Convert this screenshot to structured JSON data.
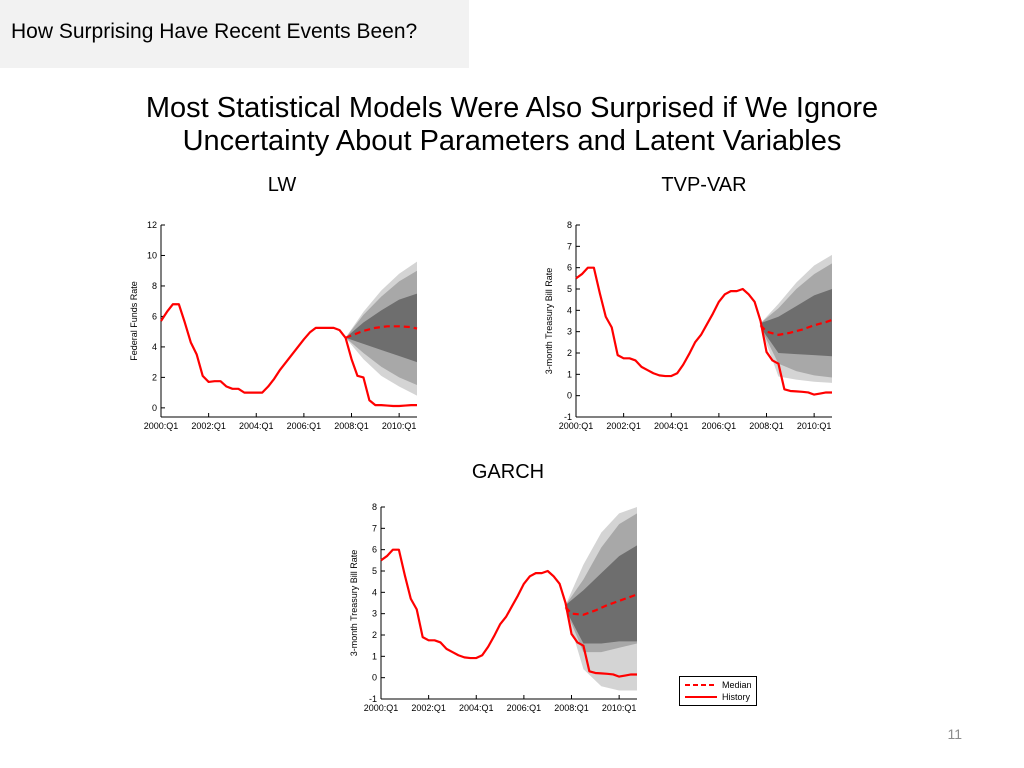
{
  "header": {
    "section_label": "How Surprising Have Recent Events Been?"
  },
  "slide": {
    "title_line1": "Most Statistical Models Were Also Surprised if We Ignore",
    "title_line2": "Uncertainty About Parameters and Latent Variables",
    "page_number": "11"
  },
  "colors": {
    "history": "#ff0000",
    "median": "#ff0000",
    "band_outer": "#d4d4d4",
    "band_middle": "#a8a8a8",
    "band_inner": "#6e6e6e"
  },
  "legend": {
    "median_label": "Median",
    "history_label": "History"
  },
  "chart_data": [
    {
      "type": "line",
      "heading": "LW",
      "ylabel": "Federal Funds Rate",
      "xlabel": "",
      "ylim": [
        -0.6,
        12
      ],
      "yticks": [
        0,
        2,
        4,
        6,
        8,
        10,
        12
      ],
      "xlim": [
        2000.0,
        2010.75
      ],
      "xticks": [
        {
          "t": 2000.0,
          "label": "2000:Q1"
        },
        {
          "t": 2002.0,
          "label": "2002:Q1"
        },
        {
          "t": 2004.0,
          "label": "2004:Q1"
        },
        {
          "t": 2006.0,
          "label": "2006:Q1"
        },
        {
          "t": 2008.0,
          "label": "2008:Q1"
        },
        {
          "t": 2010.0,
          "label": "2010:Q1"
        }
      ],
      "series": [
        {
          "name": "History",
          "style": "solid",
          "x": [
            2000.0,
            2000.25,
            2000.5,
            2000.75,
            2001.0,
            2001.25,
            2001.5,
            2001.75,
            2002.0,
            2002.25,
            2002.5,
            2002.75,
            2003.0,
            2003.25,
            2003.5,
            2003.75,
            2004.0,
            2004.25,
            2004.5,
            2004.75,
            2005.0,
            2005.25,
            2005.5,
            2005.75,
            2006.0,
            2006.25,
            2006.5,
            2006.75,
            2007.0,
            2007.25,
            2007.5,
            2007.75,
            2008.0,
            2008.25,
            2008.5,
            2008.75,
            2009.0,
            2009.25,
            2009.5,
            2009.75,
            2010.0,
            2010.25,
            2010.5,
            2010.75
          ],
          "y": [
            5.7,
            6.3,
            6.8,
            6.8,
            5.6,
            4.3,
            3.5,
            2.1,
            1.7,
            1.75,
            1.75,
            1.4,
            1.25,
            1.25,
            1.0,
            1.0,
            1.0,
            1.0,
            1.4,
            1.9,
            2.5,
            3.0,
            3.5,
            4.0,
            4.5,
            4.95,
            5.25,
            5.25,
            5.25,
            5.25,
            5.1,
            4.6,
            3.2,
            2.1,
            2.0,
            0.5,
            0.18,
            0.18,
            0.15,
            0.12,
            0.12,
            0.15,
            0.18,
            0.18
          ]
        },
        {
          "name": "Median",
          "style": "dashed",
          "x": [
            2007.75,
            2008.0,
            2008.5,
            2009.0,
            2009.5,
            2010.0,
            2010.5,
            2010.75
          ],
          "y": [
            4.6,
            4.75,
            5.05,
            5.25,
            5.35,
            5.35,
            5.3,
            5.2
          ]
        }
      ],
      "bands": {
        "x": [
          2007.75,
          2008.5,
          2009.25,
          2010.0,
          2010.75
        ],
        "outer_lower": [
          4.6,
          3.2,
          2.1,
          1.4,
          0.8
        ],
        "outer_upper": [
          4.6,
          6.3,
          7.7,
          8.8,
          9.6
        ],
        "middle_lower": [
          4.6,
          3.6,
          2.7,
          2.0,
          1.5
        ],
        "middle_upper": [
          4.6,
          6.1,
          7.3,
          8.3,
          9.0
        ],
        "inner_lower": [
          4.6,
          4.2,
          3.8,
          3.4,
          3.0
        ],
        "inner_upper": [
          4.6,
          5.6,
          6.4,
          7.1,
          7.5
        ]
      }
    },
    {
      "type": "line",
      "heading": "TVP-VAR",
      "ylabel": "3-month Treasury Bill Rate",
      "xlabel": "",
      "ylim": [
        -1,
        8
      ],
      "yticks": [
        -1,
        0,
        1,
        2,
        3,
        4,
        5,
        6,
        7,
        8
      ],
      "xlim": [
        2000.0,
        2010.75
      ],
      "xticks": [
        {
          "t": 2000.0,
          "label": "2000:Q1"
        },
        {
          "t": 2002.0,
          "label": "2002:Q1"
        },
        {
          "t": 2004.0,
          "label": "2004:Q1"
        },
        {
          "t": 2006.0,
          "label": "2006:Q1"
        },
        {
          "t": 2008.0,
          "label": "2008:Q1"
        },
        {
          "t": 2010.0,
          "label": "2010:Q1"
        }
      ],
      "series": [
        {
          "name": "History",
          "style": "solid",
          "x": [
            2000.0,
            2000.25,
            2000.5,
            2000.75,
            2001.0,
            2001.25,
            2001.5,
            2001.75,
            2002.0,
            2002.25,
            2002.5,
            2002.75,
            2003.0,
            2003.25,
            2003.5,
            2003.75,
            2004.0,
            2004.25,
            2004.5,
            2004.75,
            2005.0,
            2005.25,
            2005.5,
            2005.75,
            2006.0,
            2006.25,
            2006.5,
            2006.75,
            2007.0,
            2007.25,
            2007.5,
            2007.75,
            2008.0,
            2008.25,
            2008.5,
            2008.75,
            2009.0,
            2009.25,
            2009.5,
            2009.75,
            2010.0,
            2010.25,
            2010.5,
            2010.75
          ],
          "y": [
            5.5,
            5.7,
            6.0,
            6.0,
            4.8,
            3.7,
            3.2,
            1.9,
            1.75,
            1.75,
            1.65,
            1.35,
            1.2,
            1.05,
            0.95,
            0.92,
            0.92,
            1.05,
            1.45,
            1.95,
            2.5,
            2.85,
            3.35,
            3.85,
            4.4,
            4.75,
            4.9,
            4.9,
            5.0,
            4.75,
            4.4,
            3.5,
            2.05,
            1.65,
            1.5,
            0.3,
            0.22,
            0.2,
            0.18,
            0.15,
            0.05,
            0.1,
            0.15,
            0.15
          ]
        },
        {
          "name": "Median",
          "style": "dashed",
          "x": [
            2007.75,
            2008.0,
            2008.5,
            2009.0,
            2009.5,
            2010.0,
            2010.5,
            2010.75
          ],
          "y": [
            3.3,
            3.0,
            2.85,
            2.95,
            3.1,
            3.3,
            3.45,
            3.55
          ]
        }
      ],
      "bands": {
        "x": [
          2007.75,
          2008.5,
          2009.25,
          2010.0,
          2010.75
        ],
        "outer_lower": [
          3.2,
          0.9,
          0.75,
          0.65,
          0.6
        ],
        "outer_upper": [
          3.4,
          4.3,
          5.3,
          6.1,
          6.6
        ],
        "middle_lower": [
          3.2,
          1.5,
          1.15,
          0.95,
          0.85
        ],
        "middle_upper": [
          3.4,
          4.1,
          5.0,
          5.7,
          6.2
        ],
        "inner_lower": [
          3.2,
          2.0,
          1.95,
          1.9,
          1.85
        ],
        "inner_upper": [
          3.4,
          3.7,
          4.2,
          4.7,
          5.0
        ]
      }
    },
    {
      "type": "line",
      "heading": "GARCH",
      "ylabel": "3-month Treasury Bill Rate",
      "xlabel": "",
      "ylim": [
        -1,
        8
      ],
      "yticks": [
        -1,
        0,
        1,
        2,
        3,
        4,
        5,
        6,
        7,
        8
      ],
      "xlim": [
        2000.0,
        2010.75
      ],
      "xticks": [
        {
          "t": 2000.0,
          "label": "2000:Q1"
        },
        {
          "t": 2002.0,
          "label": "2002:Q1"
        },
        {
          "t": 2004.0,
          "label": "2004:Q1"
        },
        {
          "t": 2006.0,
          "label": "2006:Q1"
        },
        {
          "t": 2008.0,
          "label": "2008:Q1"
        },
        {
          "t": 2010.0,
          "label": "2010:Q1"
        }
      ],
      "legend": [
        "Median",
        "History"
      ],
      "series": [
        {
          "name": "History",
          "style": "solid",
          "x": [
            2000.0,
            2000.25,
            2000.5,
            2000.75,
            2001.0,
            2001.25,
            2001.5,
            2001.75,
            2002.0,
            2002.25,
            2002.5,
            2002.75,
            2003.0,
            2003.25,
            2003.5,
            2003.75,
            2004.0,
            2004.25,
            2004.5,
            2004.75,
            2005.0,
            2005.25,
            2005.5,
            2005.75,
            2006.0,
            2006.25,
            2006.5,
            2006.75,
            2007.0,
            2007.25,
            2007.5,
            2007.75,
            2008.0,
            2008.25,
            2008.5,
            2008.75,
            2009.0,
            2009.25,
            2009.5,
            2009.75,
            2010.0,
            2010.25,
            2010.5,
            2010.75
          ],
          "y": [
            5.5,
            5.7,
            6.0,
            6.0,
            4.8,
            3.7,
            3.2,
            1.9,
            1.75,
            1.75,
            1.65,
            1.35,
            1.2,
            1.05,
            0.95,
            0.92,
            0.92,
            1.05,
            1.45,
            1.95,
            2.5,
            2.85,
            3.35,
            3.85,
            4.4,
            4.75,
            4.9,
            4.9,
            5.0,
            4.75,
            4.4,
            3.5,
            2.05,
            1.65,
            1.5,
            0.3,
            0.22,
            0.2,
            0.18,
            0.15,
            0.05,
            0.1,
            0.15,
            0.15
          ]
        },
        {
          "name": "Median",
          "style": "dashed",
          "x": [
            2007.75,
            2008.0,
            2008.5,
            2009.0,
            2009.5,
            2010.0,
            2010.5,
            2010.75
          ],
          "y": [
            3.3,
            3.0,
            2.95,
            3.15,
            3.4,
            3.6,
            3.8,
            3.9
          ]
        }
      ],
      "bands": {
        "x": [
          2007.75,
          2008.5,
          2009.25,
          2010.0,
          2010.75
        ],
        "outer_lower": [
          3.2,
          0.4,
          -0.4,
          -0.6,
          -0.6
        ],
        "outer_upper": [
          3.4,
          5.3,
          6.8,
          7.7,
          8.0
        ],
        "middle_lower": [
          3.2,
          1.2,
          1.2,
          1.4,
          1.6
        ],
        "middle_upper": [
          3.4,
          4.6,
          6.1,
          7.2,
          7.7
        ],
        "inner_lower": [
          3.2,
          1.6,
          1.6,
          1.7,
          1.7
        ],
        "inner_upper": [
          3.4,
          4.1,
          4.9,
          5.7,
          6.2
        ]
      }
    }
  ]
}
